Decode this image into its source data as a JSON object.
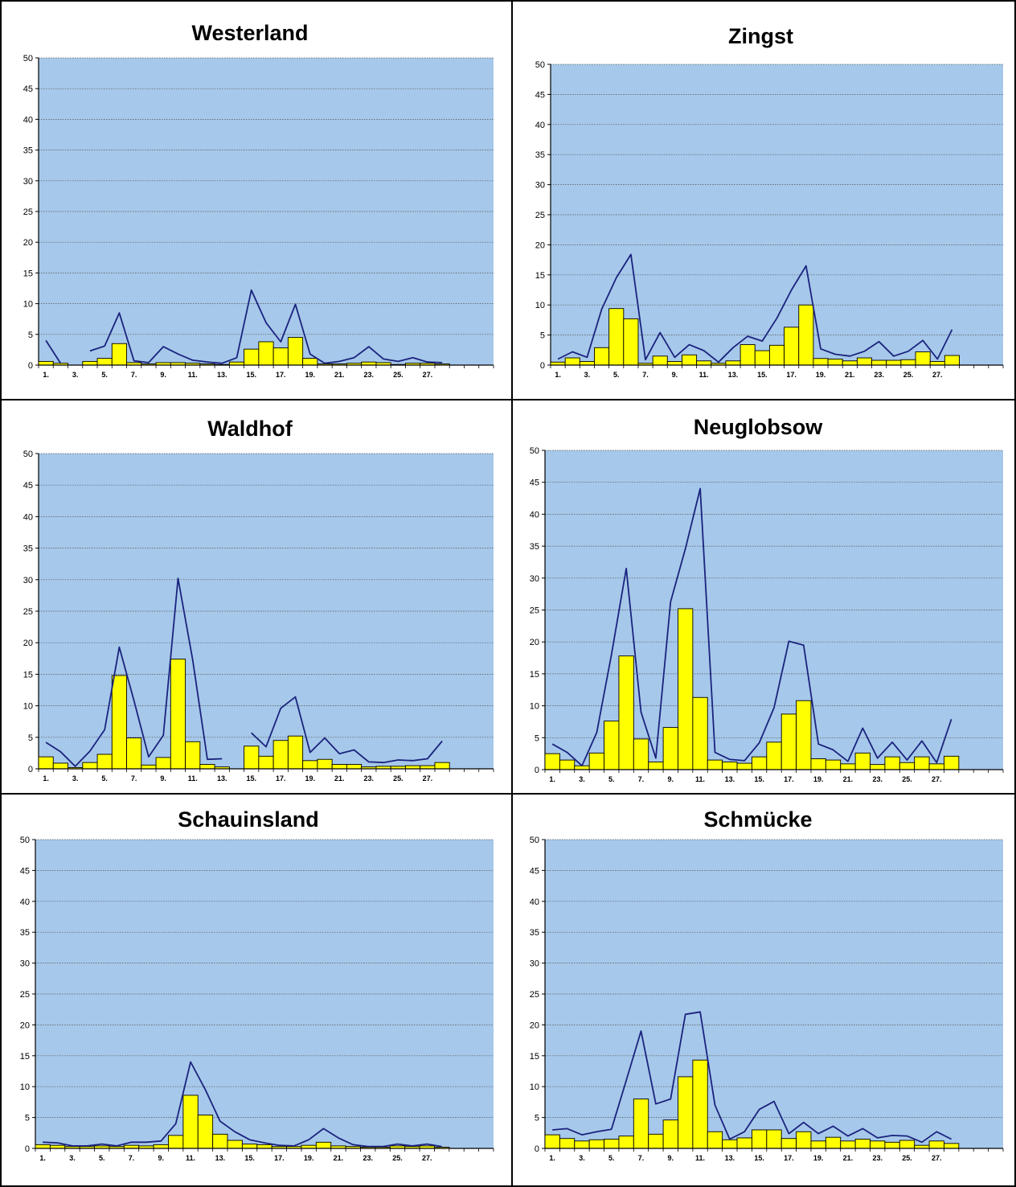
{
  "colors": {
    "plot_bg": "#a6c8ea",
    "bar_fill": "#ffff00",
    "bar_stroke": "#000000",
    "line": "#1a237e",
    "grid": "#555555"
  },
  "chart_data": [
    {
      "type": "bar",
      "title": "Westerland",
      "ylim": [
        0,
        50
      ],
      "yticks": [
        "0",
        "5",
        "10",
        "15",
        "20",
        "25",
        "30",
        "35",
        "40",
        "45",
        "50"
      ],
      "xticks": [
        "1.",
        "3.",
        "5.",
        "7.",
        "9.",
        "11.",
        "13.",
        "15.",
        "17.",
        "19.",
        "21.",
        "23.",
        "25.",
        "27."
      ],
      "categories": [
        1,
        2,
        3,
        4,
        5,
        6,
        7,
        8,
        9,
        10,
        11,
        12,
        13,
        14,
        15,
        16,
        17,
        18,
        19,
        20,
        21,
        22,
        23,
        24,
        25,
        26,
        27,
        28
      ],
      "series": [
        {
          "kind": "bar",
          "values": [
            0.6,
            0.3,
            null,
            0.6,
            1.1,
            3.5,
            0.4,
            0.2,
            0.4,
            0.4,
            0.3,
            0.2,
            0.1,
            0.5,
            2.6,
            3.8,
            2.8,
            4.5,
            1.1,
            0.2,
            0.2,
            0.3,
            0.5,
            0.4,
            0.1,
            0.3,
            0.3,
            0.2
          ]
        },
        {
          "kind": "line",
          "values": [
            4.0,
            0.3,
            null,
            2.3,
            3.1,
            8.5,
            0.7,
            0.4,
            3.0,
            1.8,
            0.8,
            0.5,
            0.3,
            1.2,
            12.2,
            6.9,
            3.8,
            9.9,
            1.8,
            0.3,
            0.6,
            1.2,
            3.0,
            1.0,
            0.6,
            1.2,
            0.5,
            0.4
          ]
        }
      ],
      "grid": true,
      "legend": "none"
    },
    {
      "type": "bar",
      "title": "Zingst",
      "ylim": [
        0,
        50
      ],
      "yticks": [
        "0",
        "5",
        "10",
        "15",
        "20",
        "25",
        "30",
        "35",
        "40",
        "45",
        "50"
      ],
      "xticks": [
        "1.",
        "3.",
        "5.",
        "7.",
        "9.",
        "11.",
        "13.",
        "15.",
        "17.",
        "19.",
        "21.",
        "23.",
        "25.",
        "27."
      ],
      "categories": [
        1,
        2,
        3,
        4,
        5,
        6,
        7,
        8,
        9,
        10,
        11,
        12,
        13,
        14,
        15,
        16,
        17,
        18,
        19,
        20,
        21,
        22,
        23,
        24,
        25,
        26,
        27,
        28
      ],
      "series": [
        {
          "kind": "bar",
          "values": [
            0.5,
            1.2,
            0.6,
            2.9,
            9.4,
            7.7,
            0.3,
            1.5,
            0.6,
            1.7,
            0.7,
            0.3,
            0.7,
            3.4,
            2.4,
            3.3,
            6.3,
            10.0,
            1.1,
            1.0,
            0.7,
            1.2,
            0.8,
            0.8,
            0.9,
            2.2,
            0.6,
            1.6
          ]
        },
        {
          "kind": "line",
          "values": [
            1.0,
            2.2,
            1.3,
            9.3,
            14.5,
            18.4,
            0.9,
            5.4,
            1.3,
            3.4,
            2.4,
            0.5,
            2.9,
            4.8,
            4.0,
            7.8,
            12.5,
            16.5,
            2.7,
            1.8,
            1.5,
            2.3,
            3.9,
            1.5,
            2.3,
            4.1,
            1.0,
            5.9
          ]
        }
      ],
      "grid": true,
      "legend": "none"
    },
    {
      "type": "bar",
      "title": "Waldhof",
      "ylim": [
        0,
        50
      ],
      "yticks": [
        "0",
        "5",
        "10",
        "15",
        "20",
        "25",
        "30",
        "35",
        "40",
        "45",
        "50"
      ],
      "xticks": [
        "1.",
        "3.",
        "5.",
        "7.",
        "9.",
        "11.",
        "13.",
        "15.",
        "17.",
        "19.",
        "21.",
        "23.",
        "25.",
        "27."
      ],
      "categories": [
        1,
        2,
        3,
        4,
        5,
        6,
        7,
        8,
        9,
        10,
        11,
        12,
        13,
        14,
        15,
        16,
        17,
        18,
        19,
        20,
        21,
        22,
        23,
        24,
        25,
        26,
        27,
        28
      ],
      "series": [
        {
          "kind": "bar",
          "values": [
            1.9,
            0.9,
            0.2,
            1.0,
            2.3,
            14.8,
            4.9,
            0.6,
            1.8,
            17.4,
            4.3,
            0.7,
            0.3,
            null,
            3.6,
            2.0,
            4.5,
            5.2,
            1.3,
            1.5,
            0.7,
            0.7,
            0.3,
            0.4,
            0.4,
            0.5,
            0.5,
            1.0
          ]
        },
        {
          "kind": "line",
          "values": [
            4.2,
            2.7,
            0.4,
            2.8,
            6.2,
            19.3,
            10.8,
            1.9,
            5.3,
            30.2,
            17.3,
            1.5,
            1.6,
            null,
            5.7,
            3.5,
            9.6,
            11.4,
            2.6,
            4.9,
            2.4,
            3.0,
            1.1,
            1.0,
            1.4,
            1.3,
            1.6,
            4.4
          ]
        }
      ],
      "grid": true,
      "legend": "none"
    },
    {
      "type": "bar",
      "title": "Neuglobsow",
      "ylim": [
        0,
        50
      ],
      "yticks": [
        "0",
        "5",
        "10",
        "15",
        "20",
        "25",
        "30",
        "35",
        "40",
        "45",
        "50"
      ],
      "xticks": [
        "1.",
        "3.",
        "5.",
        "7.",
        "9.",
        "11.",
        "13.",
        "15.",
        "17.",
        "19.",
        "21.",
        "23.",
        "25.",
        "27."
      ],
      "categories": [
        1,
        2,
        3,
        4,
        5,
        6,
        7,
        8,
        9,
        10,
        11,
        12,
        13,
        14,
        15,
        16,
        17,
        18,
        19,
        20,
        21,
        22,
        23,
        24,
        25,
        26,
        27,
        28
      ],
      "series": [
        {
          "kind": "bar",
          "values": [
            2.5,
            1.5,
            0.6,
            2.6,
            7.6,
            17.8,
            4.8,
            1.2,
            6.6,
            25.2,
            11.3,
            1.5,
            1.2,
            1.0,
            2.0,
            4.3,
            8.7,
            10.8,
            1.7,
            1.5,
            0.9,
            2.6,
            0.8,
            2.0,
            1.1,
            2.0,
            0.9,
            2.1
          ]
        },
        {
          "kind": "line",
          "values": [
            4.0,
            2.7,
            0.6,
            5.8,
            18.0,
            31.5,
            9.0,
            1.8,
            26.3,
            34.6,
            44.0,
            2.7,
            1.6,
            1.4,
            4.2,
            9.7,
            20.1,
            19.5,
            4.0,
            3.1,
            1.3,
            6.5,
            1.8,
            4.3,
            1.5,
            4.5,
            1.1,
            7.9
          ]
        }
      ],
      "grid": true,
      "legend": "none"
    },
    {
      "type": "bar",
      "title": "Schauinsland",
      "ylim": [
        0,
        50
      ],
      "yticks": [
        "0",
        "5",
        "10",
        "15",
        "20",
        "25",
        "30",
        "35",
        "40",
        "45",
        "50"
      ],
      "xticks": [
        "1.",
        "3.",
        "5.",
        "7.",
        "9.",
        "11.",
        "13.",
        "15.",
        "17.",
        "19.",
        "21.",
        "23.",
        "25.",
        "27."
      ],
      "categories": [
        1,
        2,
        3,
        4,
        5,
        6,
        7,
        8,
        9,
        10,
        11,
        12,
        13,
        14,
        15,
        16,
        17,
        18,
        19,
        20,
        21,
        22,
        23,
        24,
        25,
        26,
        27,
        28
      ],
      "series": [
        {
          "kind": "bar",
          "values": [
            0.6,
            0.5,
            0.3,
            0.3,
            0.4,
            0.3,
            0.5,
            0.4,
            0.6,
            2.1,
            8.6,
            5.4,
            2.3,
            1.3,
            0.7,
            0.6,
            0.3,
            0.3,
            0.5,
            1.0,
            0.4,
            0.3,
            0.2,
            0.2,
            0.4,
            0.3,
            0.4,
            0.2
          ]
        },
        {
          "kind": "line",
          "values": [
            1.0,
            0.9,
            0.4,
            0.4,
            0.7,
            0.4,
            1.0,
            1.0,
            1.2,
            4.0,
            14.0,
            9.5,
            4.4,
            2.7,
            1.4,
            0.9,
            0.5,
            0.4,
            1.4,
            3.2,
            1.7,
            0.6,
            0.3,
            0.3,
            0.7,
            0.4,
            0.7,
            0.3
          ]
        }
      ],
      "grid": true,
      "legend": "none"
    },
    {
      "type": "bar",
      "title": "Schmücke",
      "ylim": [
        0,
        50
      ],
      "yticks": [
        "0",
        "5",
        "10",
        "15",
        "20",
        "25",
        "30",
        "35",
        "40",
        "45",
        "50"
      ],
      "xticks": [
        "1.",
        "3.",
        "5.",
        "7.",
        "9.",
        "11.",
        "13.",
        "15.",
        "17.",
        "19.",
        "21.",
        "23.",
        "25.",
        "27."
      ],
      "categories": [
        1,
        2,
        3,
        4,
        5,
        6,
        7,
        8,
        9,
        10,
        11,
        12,
        13,
        14,
        15,
        16,
        17,
        18,
        19,
        20,
        21,
        22,
        23,
        24,
        25,
        26,
        27,
        28
      ],
      "series": [
        {
          "kind": "bar",
          "values": [
            2.2,
            1.6,
            1.2,
            1.4,
            1.5,
            2.0,
            8.0,
            2.3,
            4.6,
            11.6,
            14.3,
            2.7,
            1.4,
            1.7,
            3.0,
            3.0,
            1.6,
            2.7,
            1.2,
            1.8,
            1.2,
            1.5,
            1.2,
            1.0,
            1.3,
            0.5,
            1.2,
            0.8
          ]
        },
        {
          "kind": "line",
          "values": [
            3.0,
            3.2,
            2.2,
            2.7,
            3.1,
            11.0,
            19.0,
            7.2,
            8.0,
            21.7,
            22.1,
            7.0,
            1.5,
            2.7,
            6.3,
            7.6,
            2.4,
            4.2,
            2.4,
            3.6,
            2.0,
            3.2,
            1.7,
            2.1,
            2.0,
            1.0,
            2.7,
            1.5
          ]
        }
      ],
      "grid": true,
      "legend": "none"
    }
  ]
}
